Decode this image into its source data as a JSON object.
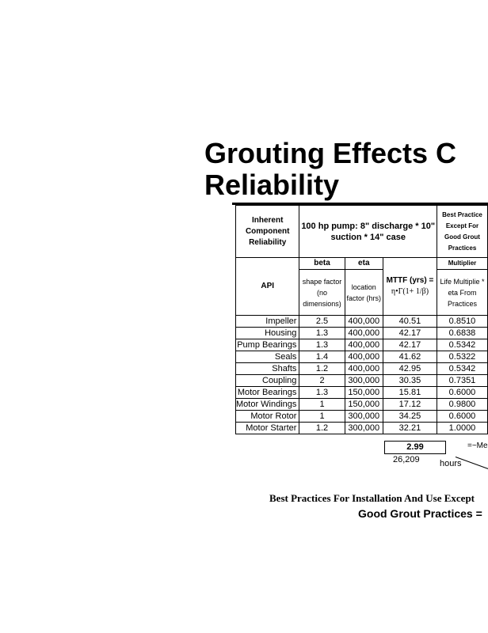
{
  "title": [
    "Grouting Effects C",
    "Reliability"
  ],
  "table": {
    "h_inherent": "Inherent Component Reliability",
    "h_pump": "100 hp pump: 8\" discharge * 10\" suction * 14\" case",
    "h_best": "Best Practice Except For Good Grout Practices",
    "h_beta": "beta",
    "h_eta": "eta",
    "h_multiplier": "Multiplier",
    "h_api": "API",
    "h_shape": "shape factor (no dimensions)",
    "h_location": "location factor (hrs)",
    "h_mttf": "MTTF (yrs)  =",
    "h_mttf_formula": "η•Γ(1+  1/β)",
    "h_life": "Life Multiplie * eta From Practices",
    "rows": [
      {
        "name": "Impeller",
        "beta": "2.5",
        "eta": "400,000",
        "mttf": "40.51",
        "mult": "0.8510"
      },
      {
        "name": "Housing",
        "beta": "1.3",
        "eta": "400,000",
        "mttf": "42.17",
        "mult": "0.6838"
      },
      {
        "name": "Pump Bearings",
        "beta": "1.3",
        "eta": "400,000",
        "mttf": "42.17",
        "mult": "0.5342"
      },
      {
        "name": "Seals",
        "beta": "1.4",
        "eta": "400,000",
        "mttf": "41.62",
        "mult": "0.5322"
      },
      {
        "name": "Shafts",
        "beta": "1.2",
        "eta": "400,000",
        "mttf": "42.95",
        "mult": "0.5342"
      },
      {
        "name": "Coupling",
        "beta": "2",
        "eta": "300,000",
        "mttf": "30.35",
        "mult": "0.7351"
      },
      {
        "name": "Motor Bearings",
        "beta": "1.3",
        "eta": "150,000",
        "mttf": "15.81",
        "mult": "0.6000"
      },
      {
        "name": "Motor Windings",
        "beta": "1",
        "eta": "150,000",
        "mttf": "17.12",
        "mult": "0.9800"
      },
      {
        "name": "Motor Rotor",
        "beta": "1",
        "eta": "300,000",
        "mttf": "34.25",
        "mult": "0.6000"
      },
      {
        "name": "Motor Starter",
        "beta": "1.2",
        "eta": "300,000",
        "mttf": "32.21",
        "mult": "1.0000"
      }
    ],
    "total": "2.99",
    "mean": "=~Me",
    "hours_value": "26,209",
    "hours_label": "hours"
  },
  "footer": {
    "line1": "Best Practices For Installation And Use Except",
    "line2": "Good Grout Practices ="
  }
}
